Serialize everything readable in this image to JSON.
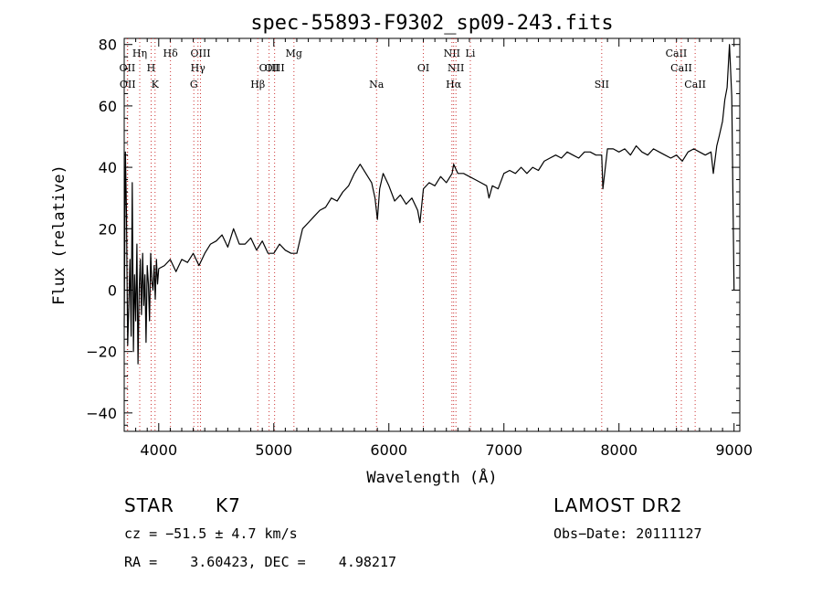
{
  "chart_data": {
    "type": "line",
    "title": "spec-55893-F9302_sp09-243.fits",
    "xlabel": "Wavelength (Å)",
    "ylabel": "Flux (relative)",
    "xlim": [
      3700,
      9050
    ],
    "ylim": [
      -46,
      82
    ],
    "xticks": [
      4000,
      5000,
      6000,
      7000,
      8000,
      9000
    ],
    "yticks": [
      -40,
      -20,
      0,
      20,
      40,
      60,
      80
    ],
    "line_color": "#000000",
    "marker_color": "#cc3333",
    "series": [
      {
        "x": [
          3700,
          3710,
          3720,
          3730,
          3740,
          3750,
          3760,
          3770,
          3780,
          3790,
          3800,
          3810,
          3820,
          3830,
          3840,
          3850,
          3860,
          3870,
          3880,
          3890,
          3900,
          3910,
          3920,
          3930,
          3940,
          3950,
          3960,
          3970,
          3980,
          3990,
          4000,
          4050,
          4100,
          4150,
          4200,
          4250,
          4300,
          4350,
          4400,
          4450,
          4500,
          4550,
          4600,
          4650,
          4700,
          4750,
          4800,
          4850,
          4900,
          4950,
          5000,
          5050,
          5100,
          5150,
          5200,
          5250,
          5300,
          5350,
          5400,
          5450,
          5500,
          5550,
          5600,
          5650,
          5700,
          5750,
          5800,
          5850,
          5880,
          5900,
          5920,
          5950,
          6000,
          6050,
          6100,
          6150,
          6200,
          6250,
          6270,
          6300,
          6350,
          6400,
          6450,
          6500,
          6550,
          6563,
          6600,
          6650,
          6700,
          6750,
          6800,
          6850,
          6870,
          6900,
          6950,
          7000,
          7050,
          7100,
          7150,
          7200,
          7250,
          7300,
          7350,
          7400,
          7450,
          7500,
          7550,
          7600,
          7650,
          7700,
          7750,
          7800,
          7850,
          7860,
          7900,
          7950,
          8000,
          8050,
          8100,
          8150,
          8200,
          8250,
          8300,
          8350,
          8400,
          8450,
          8500,
          8550,
          8600,
          8650,
          8700,
          8750,
          8800,
          8820,
          8850,
          8870,
          8900,
          8920,
          8940,
          8960,
          8980,
          9000
        ],
        "y": [
          -12,
          45,
          25,
          -18,
          -5,
          10,
          -15,
          35,
          -20,
          5,
          -10,
          15,
          -24,
          0,
          10,
          -8,
          12,
          -5,
          5,
          -17,
          8,
          2,
          -10,
          12,
          3,
          0,
          8,
          -3,
          10,
          2,
          7,
          8,
          10,
          6,
          10,
          9,
          12,
          8,
          12,
          15,
          16,
          18,
          14,
          20,
          15,
          15,
          17,
          13,
          16,
          12,
          12,
          15,
          13,
          12,
          12,
          20,
          22,
          24,
          26,
          27,
          30,
          29,
          32,
          34,
          38,
          41,
          38,
          35,
          30,
          23,
          33,
          38,
          34,
          29,
          31,
          28,
          30,
          26,
          22,
          33,
          35,
          34,
          37,
          35,
          38,
          41,
          38,
          38,
          37,
          36,
          35,
          34,
          30,
          34,
          33,
          38,
          39,
          38,
          40,
          38,
          40,
          39,
          42,
          43,
          44,
          43,
          45,
          44,
          43,
          45,
          45,
          44,
          44,
          33,
          46,
          46,
          45,
          46,
          44,
          47,
          45,
          44,
          46,
          45,
          44,
          43,
          44,
          42,
          45,
          46,
          45,
          44,
          45,
          38,
          47,
          50,
          55,
          62,
          66,
          80,
          63,
          0
        ]
      }
    ],
    "lines": [
      {
        "name": "OII",
        "x": 3727,
        "row": 2
      },
      {
        "name": "OII",
        "x": 3730,
        "row": 3
      },
      {
        "name": "Hη",
        "x": 3835,
        "row": 1
      },
      {
        "name": "H",
        "x": 3934,
        "row": 2
      },
      {
        "name": "K",
        "x": 3968,
        "row": 3
      },
      {
        "name": "Hδ",
        "x": 4102,
        "row": 1
      },
      {
        "name": "OIII",
        "x": 4363,
        "row": 1
      },
      {
        "name": "Hγ",
        "x": 4341,
        "row": 2
      },
      {
        "name": "G",
        "x": 4305,
        "row": 3
      },
      {
        "name": "Hβ",
        "x": 4861,
        "row": 3
      },
      {
        "name": "OIII",
        "x": 4959,
        "row": 2
      },
      {
        "name": "OIII",
        "x": 5007,
        "row": 2
      },
      {
        "name": "Mg",
        "x": 5175,
        "row": 1
      },
      {
        "name": "Na",
        "x": 5893,
        "row": 3
      },
      {
        "name": "OI",
        "x": 6300,
        "row": 2
      },
      {
        "name": "NII",
        "x": 6548,
        "row": 1
      },
      {
        "name": "Li",
        "x": 6708,
        "row": 1
      },
      {
        "name": "NII",
        "x": 6583,
        "row": 2
      },
      {
        "name": "Hα",
        "x": 6563,
        "row": 3
      },
      {
        "name": "SII",
        "x": 7850,
        "row": 3
      },
      {
        "name": "CaII",
        "x": 8498,
        "row": 1
      },
      {
        "name": "CaII",
        "x": 8542,
        "row": 2
      },
      {
        "name": "CaII",
        "x": 8662,
        "row": 3
      }
    ]
  },
  "info": {
    "object_class": "STAR",
    "subclass": "K7",
    "survey": "LAMOST DR2",
    "redshift": "cz = −51.5 ± 4.7 km/s",
    "obs_date": "Obs−Date: 20111127",
    "coords": "RA =    3.60423, DEC =    4.98217"
  }
}
